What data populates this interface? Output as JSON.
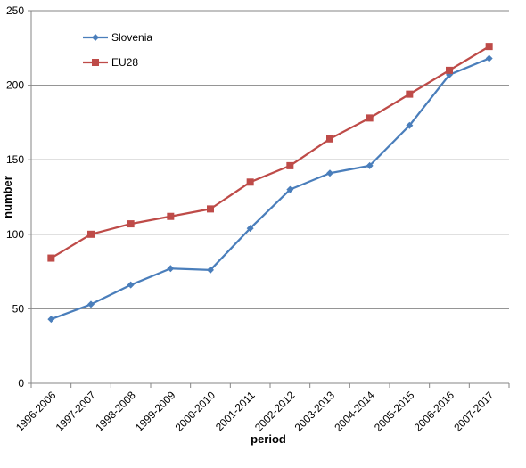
{
  "chart_data": {
    "type": "line",
    "title": "",
    "xlabel": "period",
    "ylabel": "number",
    "ylim": [
      0,
      250
    ],
    "yticks": [
      "0",
      "50",
      "100",
      "150",
      "200",
      "250"
    ],
    "grid": "horizontal",
    "legend_position": "top-left",
    "categories": [
      "1996-2006",
      "1997-2007",
      "1998-2008",
      "1999-2009",
      "2000-2010",
      "2001-2011",
      "2002-2012",
      "2003-2013",
      "2004-2014",
      "2005-2015",
      "2006-2016",
      "2007-2017"
    ],
    "series": [
      {
        "name": "Slovenia",
        "color": "#4a7ebb",
        "marker": "diamond",
        "values": [
          43,
          53,
          66,
          77,
          76,
          104,
          130,
          141,
          146,
          173,
          207,
          218
        ]
      },
      {
        "name": "EU28",
        "color": "#be4b48",
        "marker": "square",
        "values": [
          84,
          100,
          107,
          112,
          117,
          135,
          146,
          164,
          178,
          194,
          210,
          226
        ]
      }
    ]
  }
}
